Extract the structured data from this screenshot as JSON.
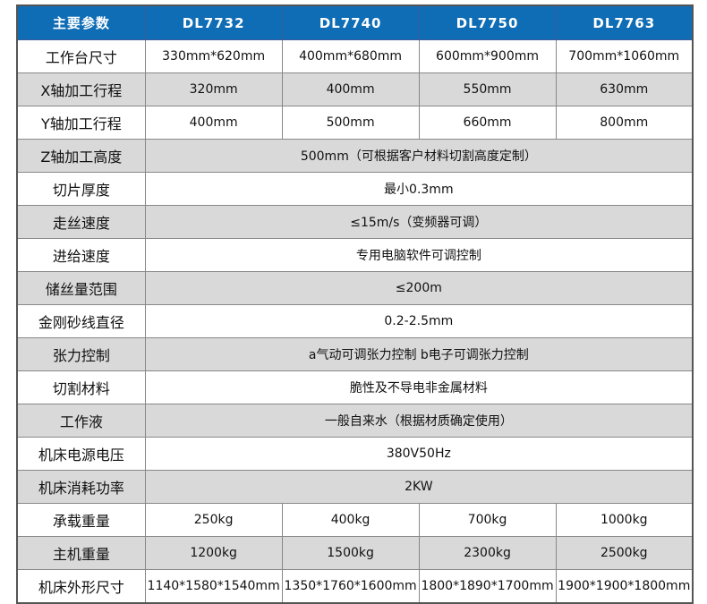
{
  "header": [
    "主要参数",
    "DL7732",
    "DL7740",
    "DL7750",
    "DL7763"
  ],
  "rows": [
    {
      "label": "工作台尺寸",
      "values": [
        "330mm*620mm",
        "400mm*680mm",
        "600mm*900mm",
        "700mm*1060mm"
      ]
    },
    {
      "label": "X轴加工行程",
      "values": [
        "320mm",
        "400mm",
        "550mm",
        "630mm"
      ]
    },
    {
      "label": "Y轴加工行程",
      "values": [
        "400mm",
        "500mm",
        "660mm",
        "800mm"
      ]
    },
    {
      "label": "Z轴加工高度",
      "values": [
        "500mm（可根据客户材料切割高度定制）"
      ]
    },
    {
      "label": "切片厚度",
      "values": [
        "最小0.3mm"
      ]
    },
    {
      "label": "走丝速度",
      "values": [
        "≤15m/s（变频器可调）"
      ]
    },
    {
      "label": "进给速度",
      "values": [
        "专用电脑软件可调控制"
      ]
    },
    {
      "label": "储丝量范围",
      "values": [
        "≤200m"
      ]
    },
    {
      "label": "金刚砂线直径",
      "values": [
        "0.2-2.5mm"
      ]
    },
    {
      "label": "张力控制",
      "values": [
        "a气动可调张力控制 b电子可调张力控制"
      ]
    },
    {
      "label": "切割材料",
      "values": [
        "脆性及不导电非金属材料"
      ]
    },
    {
      "label": "工作液",
      "values": [
        "一般自来水（根据材质确定使用）"
      ]
    },
    {
      "label": "机床电源电压",
      "values": [
        "380V50Hz"
      ]
    },
    {
      "label": "机床消耗功率",
      "values": [
        "2KW"
      ]
    },
    {
      "label": "承载重量",
      "values": [
        "250kg",
        "400kg",
        "700kg",
        "1000kg"
      ]
    },
    {
      "label": "主机重量",
      "values": [
        "1200kg",
        "1500kg",
        "2300kg",
        "2500kg"
      ]
    },
    {
      "label": "机床外形尺寸",
      "values": [
        "1140*1580*1540mm",
        "1350*1760*1600mm",
        "1800*1890*1700mm",
        "1900*1900*1800mm"
      ]
    }
  ],
  "colors": {
    "header": "#0f6db5",
    "stripe": "#d9d9d9"
  }
}
